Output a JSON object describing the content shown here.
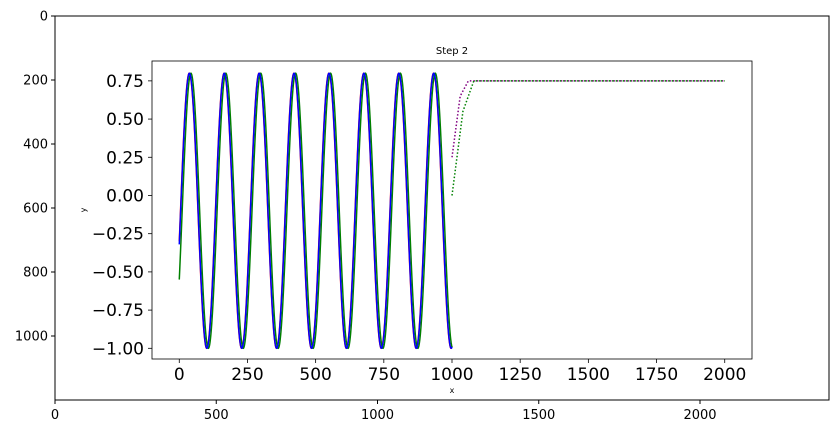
{
  "chart_data": [
    {
      "type": "image",
      "xlim": [
        0,
        2400
      ],
      "ylim": [
        1200,
        0
      ],
      "x_ticks": [
        "0",
        "500",
        "1000",
        "1500",
        "2000"
      ],
      "y_ticks": [
        "0",
        "200",
        "400",
        "600",
        "800",
        "1000"
      ],
      "x_tick_values": [
        0,
        500,
        1000,
        1500,
        2000
      ],
      "y_tick_values": [
        0,
        200,
        400,
        600,
        800,
        1000
      ]
    },
    {
      "type": "line",
      "title": "Step 2",
      "xlabel": "x",
      "ylabel": "y",
      "xlim": [
        -100,
        2100
      ],
      "ylim": [
        -1.07,
        0.88
      ],
      "x_ticks": [
        "0",
        "250",
        "500",
        "750",
        "1000",
        "1250",
        "1500",
        "1750",
        "2000"
      ],
      "y_ticks": [
        "0.75",
        "0.50",
        "0.25",
        "0.00",
        "−0.25",
        "−0.50",
        "−0.75",
        "−1.00"
      ],
      "x_tick_values": [
        0,
        250,
        500,
        750,
        1000,
        1250,
        1500,
        1750,
        2000
      ],
      "y_tick_values": [
        0.75,
        0.5,
        0.25,
        0.0,
        -0.25,
        -0.5,
        -0.75,
        -1.0
      ],
      "series": [
        {
          "color": "#ff0000",
          "style": "solid",
          "x_range": [
            0,
            1000
          ],
          "amplitude_range": [
            -1.0,
            0.8
          ],
          "period": 128,
          "x_start_value": -0.3
        },
        {
          "color": "#008000",
          "style": "solid",
          "x_range": [
            0,
            1000
          ],
          "amplitude_range": [
            -1.0,
            0.8
          ],
          "period": 128,
          "x_start_value": -0.55
        },
        {
          "color": "#0000ff",
          "style": "solid",
          "x_range": [
            0,
            1000
          ],
          "amplitude_range": [
            -1.0,
            0.8
          ],
          "period": 128,
          "x_start_value": -0.32
        },
        {
          "color": "#800080",
          "style": "dotted",
          "x": [
            1000,
            1030,
            1060,
            2000
          ],
          "y": [
            0.25,
            0.65,
            0.75,
            0.75
          ]
        },
        {
          "color": "#008000",
          "style": "dotted",
          "x": [
            1000,
            1040,
            1080,
            2000
          ],
          "y": [
            0.0,
            0.55,
            0.75,
            0.75
          ]
        }
      ]
    }
  ]
}
